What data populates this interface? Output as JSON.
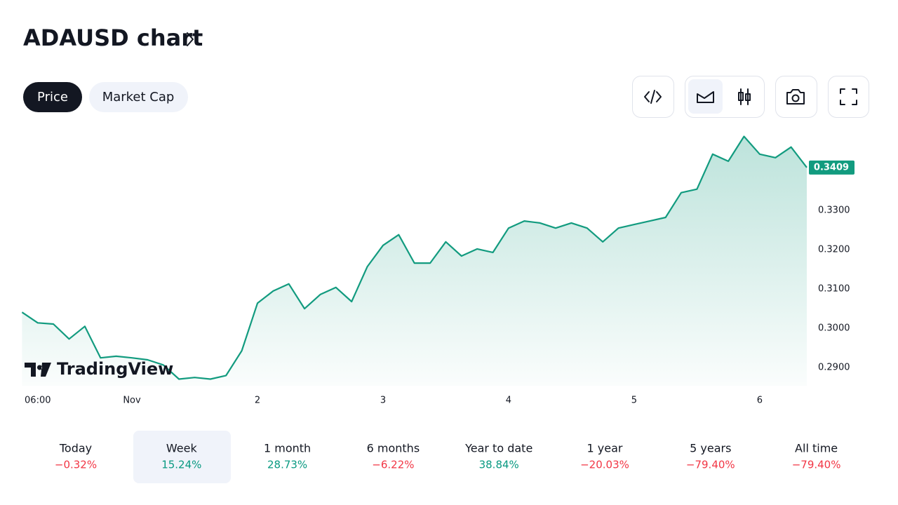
{
  "header": {
    "title": "ADAUSD chart",
    "tabs": [
      "Price",
      "Market Cap"
    ]
  },
  "chart_data": {
    "type": "line",
    "watermark": "TradingView",
    "color": "#129b7f",
    "categories": [
      null,
      "06:00",
      null,
      null,
      null,
      null,
      null,
      "Nov",
      null,
      null,
      null,
      null,
      null,
      null,
      null,
      "2",
      null,
      null,
      null,
      null,
      null,
      null,
      null,
      "3",
      null,
      null,
      null,
      null,
      null,
      null,
      null,
      "4",
      null,
      null,
      null,
      null,
      null,
      null,
      null,
      "5",
      null,
      null,
      null,
      null,
      null,
      null,
      null,
      "6",
      null,
      null,
      null
    ],
    "values": [
      0.3041,
      0.3014,
      0.3011,
      0.2973,
      0.3005,
      0.2925,
      0.2929,
      0.2925,
      0.292,
      0.2907,
      0.2871,
      0.2875,
      0.2871,
      0.288,
      0.2943,
      0.3064,
      0.3095,
      0.3113,
      0.305,
      0.3086,
      0.3104,
      0.3068,
      0.3157,
      0.3211,
      0.3238,
      0.3166,
      0.3166,
      0.322,
      0.3184,
      0.3202,
      0.3193,
      0.3255,
      0.3273,
      0.3268,
      0.3255,
      0.3268,
      0.3255,
      0.322,
      0.3255,
      0.3264,
      0.3273,
      0.3282,
      0.3345,
      0.3354,
      0.3443,
      0.3425,
      0.3488,
      0.3443,
      0.3434,
      0.3461,
      0.3409
    ],
    "ylim": [
      0.2854,
      0.3505
    ],
    "yticks": [
      {
        "value": 0.29,
        "label": "0.2900"
      },
      {
        "value": 0.3,
        "label": "0.3000"
      },
      {
        "value": 0.31,
        "label": "0.3100"
      },
      {
        "value": 0.32,
        "label": "0.3200"
      },
      {
        "value": 0.33,
        "label": "0.3300"
      }
    ]
  },
  "performance": [
    {
      "label": "Today",
      "change": "−0.32%"
    },
    {
      "label": "Week",
      "change": "15.24%"
    },
    {
      "label": "1 month",
      "change": "28.73%"
    },
    {
      "label": "6 months",
      "change": "−6.22%"
    },
    {
      "label": "Year to date",
      "change": "38.84%"
    },
    {
      "label": "1 year",
      "change": "−20.03%"
    },
    {
      "label": "5 years",
      "change": "−79.40%"
    },
    {
      "label": "All time",
      "change": "−79.40%"
    }
  ]
}
